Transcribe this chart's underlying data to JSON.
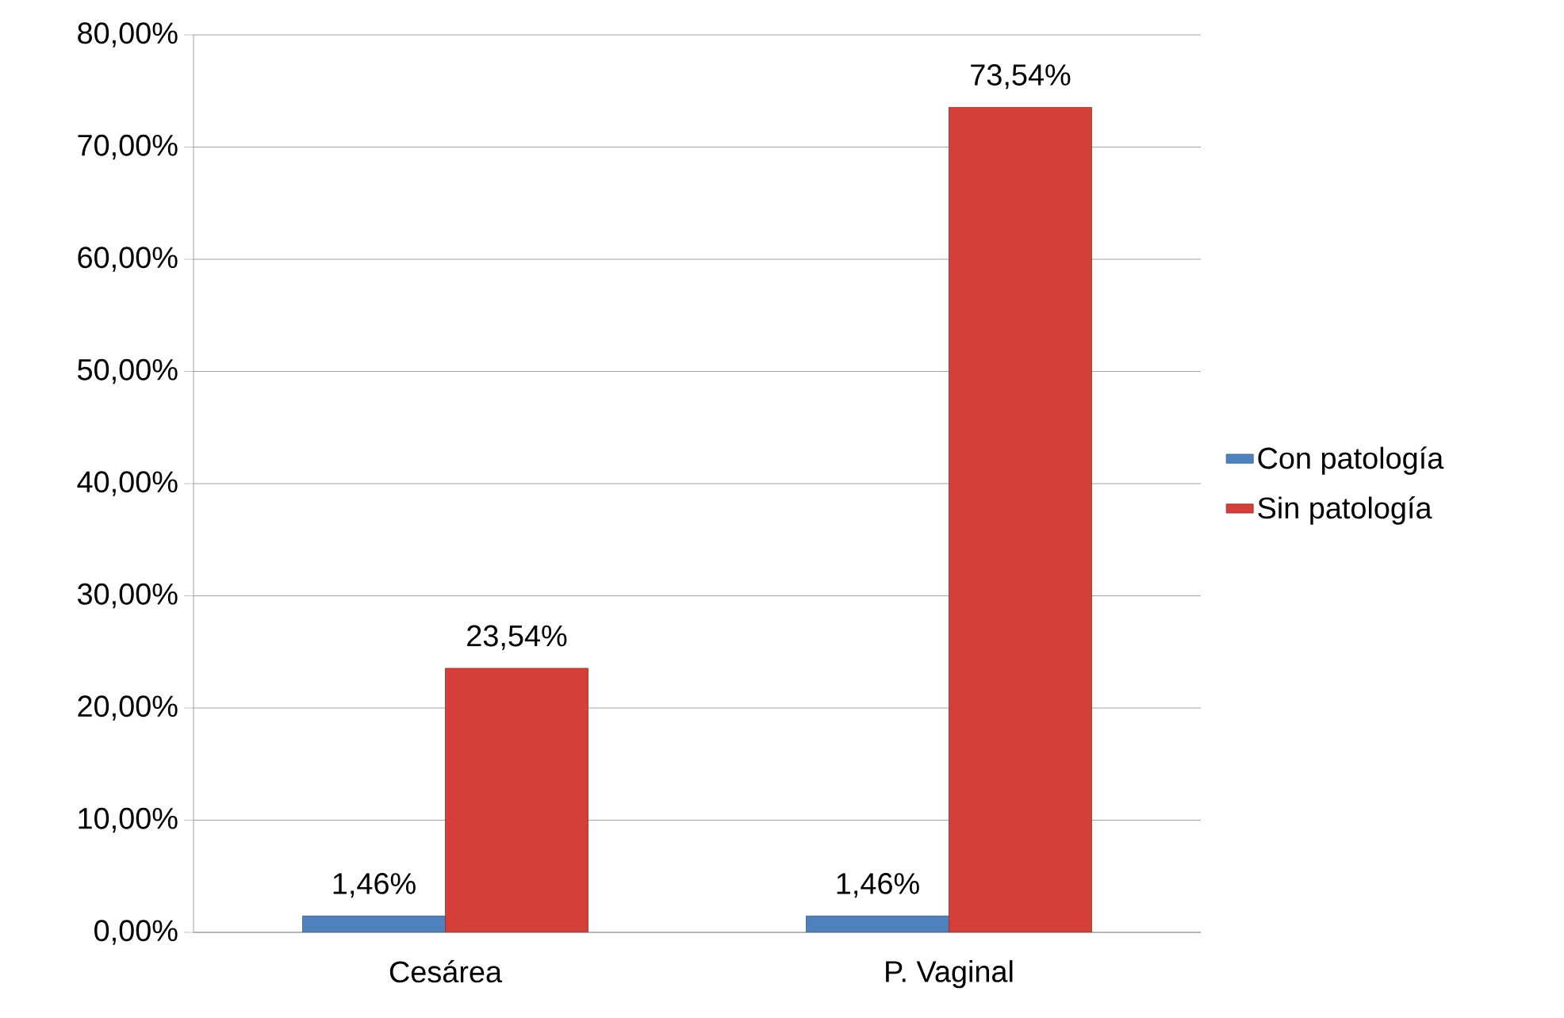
{
  "chart_data": {
    "type": "bar",
    "categories": [
      "Cesárea",
      "P. Vaginal"
    ],
    "series": [
      {
        "name": "Con patología",
        "color": "#4f81bd",
        "values": [
          1.46,
          1.46
        ],
        "value_labels": [
          "1,46%",
          "1,46%"
        ]
      },
      {
        "name": "Sin patología",
        "color": "#d43f3a",
        "values": [
          23.54,
          73.54
        ],
        "value_labels": [
          "23,54%",
          "73,54%"
        ]
      }
    ],
    "ylim": [
      0,
      80
    ],
    "yticks": [
      {
        "value": 0,
        "label": "0,00%"
      },
      {
        "value": 10,
        "label": "10,00%"
      },
      {
        "value": 20,
        "label": "20,00%"
      },
      {
        "value": 30,
        "label": "30,00%"
      },
      {
        "value": 40,
        "label": "40,00%"
      },
      {
        "value": 50,
        "label": "50,00%"
      },
      {
        "value": 60,
        "label": "60,00%"
      },
      {
        "value": 70,
        "label": "70,00%"
      },
      {
        "value": 80,
        "label": "80,00%"
      }
    ],
    "grid": "y",
    "legend": "right"
  }
}
